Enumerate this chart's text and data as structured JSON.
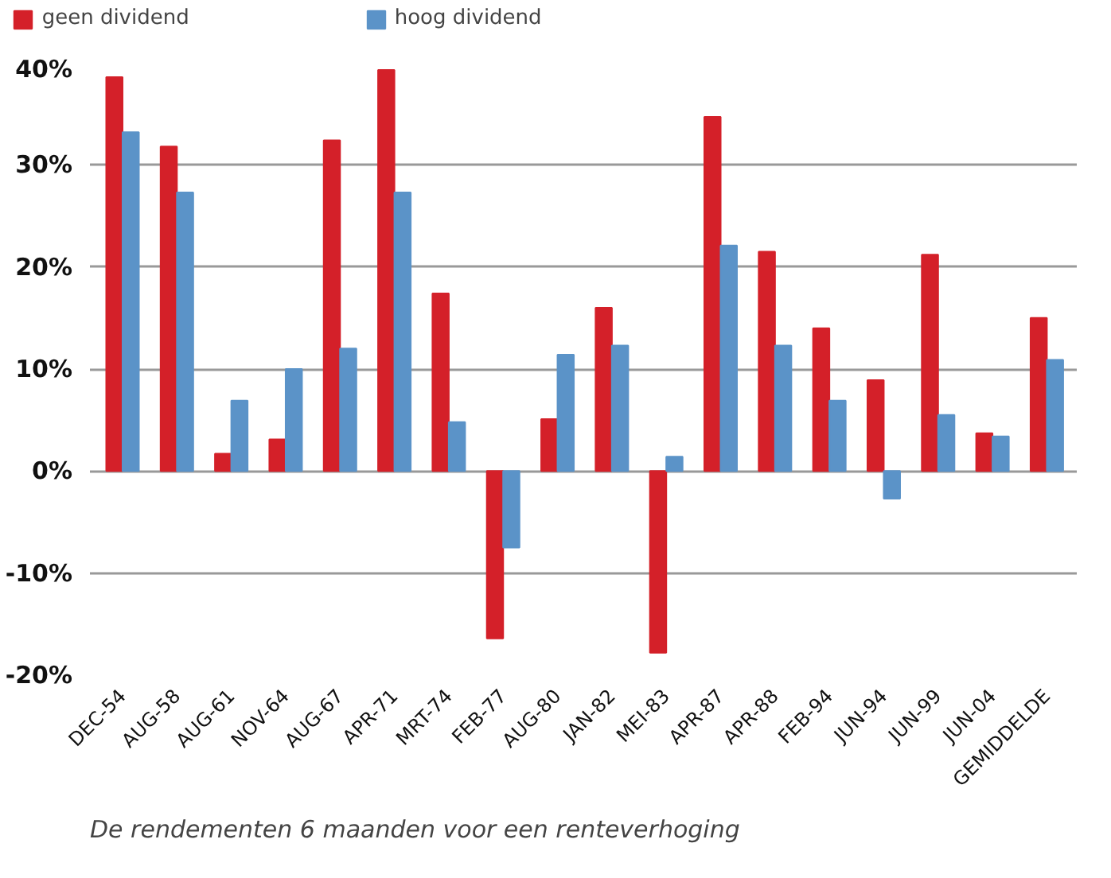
{
  "chart_data": {
    "type": "bar",
    "categories": [
      "DEC-54",
      "AUG-58",
      "AUG-61",
      "NOV-64",
      "AUG-67",
      "APR-71",
      "MRT-74",
      "FEB-77",
      "AUG-80",
      "JAN-82",
      "MEI-83",
      "APR-87",
      "APR-88",
      "FEB-94",
      "JUN-94",
      "JUN-99",
      "JUN-04",
      "GEMIDDELDE"
    ],
    "series": [
      {
        "name": "geen dividend",
        "color": "#d42029",
        "values": [
          38.6,
          31.8,
          1.7,
          3.1,
          32.4,
          39.3,
          17.4,
          -16.4,
          5.1,
          16.0,
          -17.8,
          34.7,
          21.5,
          14.0,
          8.9,
          21.2,
          3.7,
          15.0
        ]
      },
      {
        "name": "hoog dividend",
        "color": "#5b93c8",
        "values": [
          33.2,
          27.3,
          6.9,
          10.0,
          12.0,
          27.3,
          4.8,
          -7.5,
          11.4,
          12.3,
          1.4,
          22.1,
          12.3,
          6.9,
          -2.7,
          5.5,
          3.4,
          10.9
        ]
      }
    ],
    "ylim": [
      -20,
      40
    ],
    "yticks": [
      {
        "value": -20,
        "label": "-20%"
      },
      {
        "value": -10,
        "label": "-10%"
      },
      {
        "value": 0,
        "label": "0%"
      },
      {
        "value": 10,
        "label": "10%"
      },
      {
        "value": 20,
        "label": "20%"
      },
      {
        "value": 30,
        "label": "30%"
      },
      {
        "value": 40,
        "label": "40%"
      }
    ],
    "grid": "y",
    "legend": "top left",
    "annotations": [
      "De rendementen 6 maanden voor een renteverhoging"
    ]
  }
}
